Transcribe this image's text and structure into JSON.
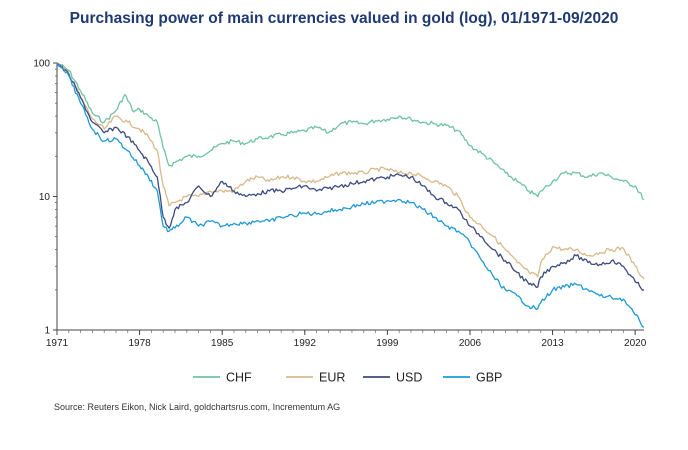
{
  "chart_data": {
    "type": "line",
    "title": "Purchasing power of main currencies valued in gold (log), 01/1971-09/2020",
    "xlabel": "",
    "ylabel": "",
    "y_scale": "log",
    "ylim": [
      1,
      100
    ],
    "xlim": [
      1971,
      2020.75
    ],
    "y_ticks": [
      1,
      10,
      100
    ],
    "y_tick_labels": [
      "1",
      "10",
      "100"
    ],
    "x_ticks": [
      1971,
      1978,
      1985,
      1992,
      1999,
      2006,
      2013,
      2020
    ],
    "x_tick_labels": [
      "1971",
      "1978",
      "1985",
      "1992",
      "1999",
      "2006",
      "2013",
      "2020"
    ],
    "legend_position": "bottom",
    "source": "Source: Reuters Eikon, Nick Laird, goldchartsrus.com, Incrementum AG",
    "series": [
      {
        "name": "CHF",
        "color": "#6fc3a4",
        "x": [
          1971,
          1972,
          1973,
          1974,
          1975,
          1976,
          1976.75,
          1977.5,
          1978,
          1978.75,
          1979.5,
          1980,
          1980.5,
          1981,
          1982,
          1983,
          1984,
          1985,
          1986,
          1987,
          1988,
          1989,
          1990,
          1991,
          1992,
          1993,
          1994,
          1995,
          1996,
          1997,
          1998,
          1999,
          2000,
          2001,
          2002,
          2003,
          2004,
          2005,
          2006,
          2007,
          2008,
          2009,
          2010,
          2011,
          2011.75,
          2012,
          2013,
          2014,
          2015,
          2016,
          2017,
          2018,
          2019,
          2020,
          2020.75
        ],
        "values": [
          100,
          88,
          62,
          42,
          36,
          44,
          58,
          43,
          45,
          40,
          36,
          23,
          17,
          18,
          20,
          20,
          22,
          25,
          26,
          25,
          27,
          28,
          29,
          30,
          31,
          33,
          30,
          35,
          36,
          35,
          37,
          38,
          40,
          38,
          36,
          35,
          34,
          31,
          24,
          21,
          18,
          15,
          13,
          11,
          10,
          11,
          13,
          15,
          15,
          14,
          15,
          14,
          13,
          12,
          9.5
        ]
      },
      {
        "name": "EUR",
        "color": "#d9b98a",
        "x": [
          1971,
          1972,
          1973,
          1974,
          1975,
          1976,
          1977,
          1978,
          1978.75,
          1979.5,
          1980,
          1980.5,
          1981,
          1982,
          1983,
          1984,
          1985,
          1986,
          1987,
          1988,
          1989,
          1990,
          1991,
          1992,
          1993,
          1994,
          1995,
          1996,
          1997,
          1998,
          1999,
          2000,
          2001,
          2002,
          2003,
          2004,
          2005,
          2006,
          2007,
          2008,
          2009,
          2010,
          2011,
          2011.75,
          2012,
          2013,
          2014,
          2015,
          2016,
          2017,
          2018,
          2019,
          2020,
          2020.75
        ],
        "values": [
          100,
          85,
          55,
          38,
          32,
          40,
          36,
          32,
          28,
          22,
          12,
          8.5,
          9,
          10,
          10,
          11,
          11,
          11,
          13,
          14,
          13,
          14,
          14,
          13,
          13,
          14,
          15,
          15,
          15,
          16,
          16,
          15,
          15,
          14,
          13,
          12,
          10,
          7,
          6,
          5,
          4,
          3.2,
          2.7,
          2.5,
          3.2,
          4.2,
          4,
          4,
          3.6,
          3.8,
          4,
          4.1,
          3,
          2.4
        ]
      },
      {
        "name": "USD",
        "color": "#3c4a80",
        "x": [
          1971,
          1972,
          1973,
          1974,
          1975,
          1976,
          1977,
          1978,
          1978.75,
          1979.5,
          1980,
          1980.5,
          1981,
          1982,
          1983,
          1984,
          1985,
          1986,
          1987,
          1988,
          1989,
          1990,
          1991,
          1992,
          1993,
          1994,
          1995,
          1996,
          1997,
          1998,
          1999,
          2000,
          2001,
          2002,
          2003,
          2004,
          2005,
          2006,
          2007,
          2008,
          2009,
          2010,
          2011,
          2011.75,
          2012,
          2013,
          2014,
          2015,
          2016,
          2017,
          2018,
          2019,
          2020,
          2020.75
        ],
        "values": [
          100,
          82,
          55,
          36,
          30,
          33,
          28,
          22,
          18,
          14,
          7,
          5.8,
          8,
          9,
          12,
          10,
          13,
          11,
          10,
          10.5,
          11,
          11,
          11.5,
          12,
          11,
          11.5,
          12,
          12.5,
          13,
          13.5,
          14,
          14.5,
          14,
          12,
          10,
          9,
          8,
          6,
          5,
          4,
          3.3,
          2.7,
          2.2,
          2.1,
          2.5,
          3,
          3.2,
          3.6,
          3.2,
          3.1,
          3.3,
          3,
          2.3,
          2
        ]
      },
      {
        "name": "GBP",
        "color": "#1f9ad6",
        "x": [
          1971,
          1972,
          1973,
          1974,
          1975,
          1976,
          1977,
          1978,
          1978.75,
          1979.5,
          1980,
          1980.5,
          1981,
          1982,
          1983,
          1984,
          1985,
          1986,
          1987,
          1988,
          1989,
          1990,
          1991,
          1992,
          1993,
          1994,
          1995,
          1996,
          1997,
          1998,
          1999,
          2000,
          2001,
          2002,
          2003,
          2004,
          2005,
          2006,
          2007,
          2008,
          2009,
          2010,
          2011,
          2011.75,
          2012,
          2013,
          2014,
          2015,
          2016,
          2017,
          2018,
          2019,
          2020,
          2020.75
        ],
        "values": [
          100,
          80,
          50,
          32,
          26,
          27,
          22,
          17,
          14,
          11,
          6,
          5.5,
          5.8,
          7,
          6,
          6.5,
          6,
          6.3,
          6.3,
          6.6,
          6.5,
          7,
          7.2,
          7.5,
          7.4,
          7.8,
          8,
          8.4,
          8.8,
          9,
          9.3,
          9.5,
          9,
          8,
          7,
          6,
          5.5,
          4.5,
          3.3,
          2.5,
          2,
          1.8,
          1.5,
          1.45,
          1.6,
          2,
          2.1,
          2.2,
          2,
          1.8,
          1.75,
          1.7,
          1.3,
          1.05
        ]
      }
    ]
  }
}
